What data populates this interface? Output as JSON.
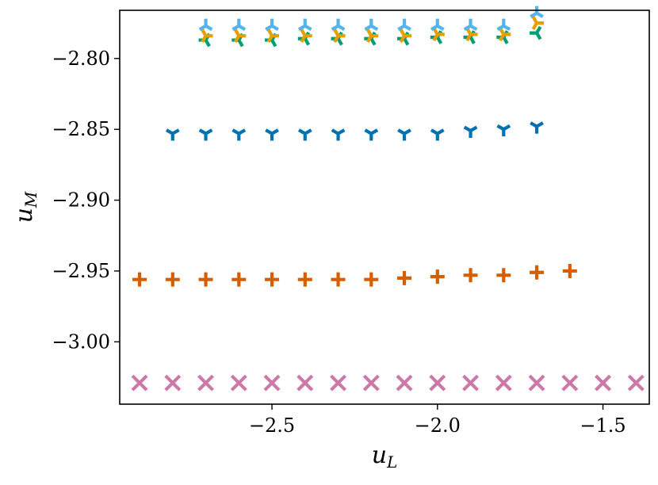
{
  "chart_data": {
    "type": "scatter",
    "xlabel": {
      "main": "u",
      "sub": "L"
    },
    "ylabel": {
      "main": "u",
      "sub": "M"
    },
    "xlim": [
      -2.96,
      -1.36
    ],
    "ylim": [
      -3.044,
      -2.766
    ],
    "xticks": [
      -2.5,
      -2.0,
      -1.5
    ],
    "xtick_labels": [
      "−2.5",
      "−2.0",
      "−1.5"
    ],
    "yticks": [
      -2.8,
      -2.85,
      -2.9,
      -2.95,
      -3.0
    ],
    "ytick_labels": [
      "−2.80",
      "−2.85",
      "−2.90",
      "−2.95",
      "−3.00"
    ],
    "grid": false,
    "series": [
      {
        "marker": "x",
        "color": "#cc79a7",
        "x": [
          -2.9,
          -2.8,
          -2.7,
          -2.6,
          -2.5,
          -2.4,
          -2.3,
          -2.2,
          -2.1,
          -2.0,
          -1.9,
          -1.8,
          -1.7,
          -1.6,
          -1.5,
          -1.4
        ],
        "y": [
          -3.029,
          -3.029,
          -3.029,
          -3.029,
          -3.029,
          -3.029,
          -3.029,
          -3.029,
          -3.029,
          -3.029,
          -3.029,
          -3.029,
          -3.029,
          -3.029,
          -3.029,
          -3.029
        ]
      },
      {
        "marker": "plus",
        "color": "#d55e00",
        "x": [
          -2.9,
          -2.8,
          -2.7,
          -2.6,
          -2.5,
          -2.4,
          -2.3,
          -2.2,
          -2.1,
          -2.0,
          -1.9,
          -1.8,
          -1.7,
          -1.6
        ],
        "y": [
          -2.956,
          -2.956,
          -2.956,
          -2.956,
          -2.956,
          -2.956,
          -2.956,
          -2.956,
          -2.955,
          -2.954,
          -2.953,
          -2.953,
          -2.951,
          -2.95
        ]
      },
      {
        "marker": "tri_down",
        "color": "#0072b2",
        "x": [
          -2.8,
          -2.7,
          -2.6,
          -2.5,
          -2.4,
          -2.3,
          -2.2,
          -2.1,
          -2.0,
          -1.9,
          -1.8,
          -1.7
        ],
        "y": [
          -2.853,
          -2.853,
          -2.853,
          -2.853,
          -2.853,
          -2.853,
          -2.853,
          -2.853,
          -2.853,
          -2.851,
          -2.85,
          -2.848
        ]
      },
      {
        "marker": "tri_left",
        "color": "#009e73",
        "x": [
          -2.7,
          -2.6,
          -2.5,
          -2.4,
          -2.3,
          -2.2,
          -2.1,
          -2.0,
          -1.9,
          -1.8,
          -1.7
        ],
        "y": [
          -2.787,
          -2.787,
          -2.787,
          -2.786,
          -2.786,
          -2.786,
          -2.786,
          -2.785,
          -2.785,
          -2.785,
          -2.782
        ]
      },
      {
        "marker": "tri_right",
        "color": "#e69f00",
        "x": [
          -2.7,
          -2.6,
          -2.5,
          -2.4,
          -2.3,
          -2.2,
          -2.1,
          -2.0,
          -1.9,
          -1.8,
          -1.7
        ],
        "y": [
          -2.784,
          -2.784,
          -2.784,
          -2.784,
          -2.784,
          -2.784,
          -2.784,
          -2.783,
          -2.783,
          -2.783,
          -2.775
        ]
      },
      {
        "marker": "tri_up",
        "color": "#56b4e9",
        "x": [
          -2.7,
          -2.6,
          -2.5,
          -2.4,
          -2.3,
          -2.2,
          -2.1,
          -2.0,
          -1.9,
          -1.8,
          -1.7
        ],
        "y": [
          -2.777,
          -2.777,
          -2.777,
          -2.777,
          -2.777,
          -2.777,
          -2.777,
          -2.777,
          -2.777,
          -2.777,
          -2.768
        ]
      }
    ]
  }
}
